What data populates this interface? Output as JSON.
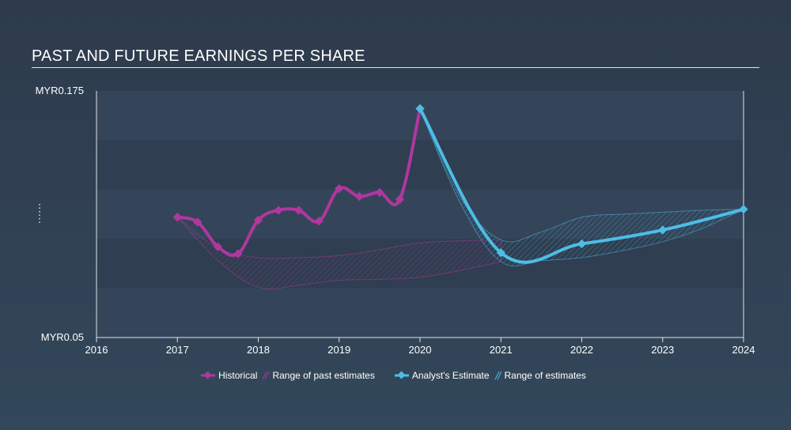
{
  "title": "PAST AND FUTURE EARNINGS PER SHARE",
  "colors": {
    "historical": "#b0379e",
    "estimate": "#4dbde6",
    "band_dark": "#2f3e50",
    "band_light": "#34455a",
    "axis": "#dfe3e8"
  },
  "legend": {
    "historical": "Historical",
    "past_range": "Range of past estimates",
    "estimate": "Analyst's Estimate",
    "future_range": "Range of estimates"
  },
  "chart_data": {
    "type": "line",
    "xlim": [
      2016.0,
      2024.0
    ],
    "ylim": [
      0.05,
      0.175
    ],
    "y_tick_labels": [
      "MYR0.175",
      "MYR0.05"
    ],
    "x_tick_labels": [
      "2016",
      "2017",
      "2018",
      "2019",
      "2020",
      "2021",
      "2022",
      "2023",
      "2024"
    ],
    "grid": "horizontal bands",
    "legend_position": "bottom-center",
    "series": [
      {
        "name": "Historical",
        "x": [
          2017.0,
          2017.25,
          2017.5,
          2017.75,
          2018.0,
          2018.25,
          2018.5,
          2018.75,
          2019.0,
          2019.25,
          2019.5,
          2019.75,
          2020.0
        ],
        "y": [
          0.111,
          0.1085,
          0.096,
          0.0925,
          0.1095,
          0.1145,
          0.1145,
          0.109,
          0.1255,
          0.1215,
          0.1235,
          0.12,
          0.166
        ]
      },
      {
        "name": "Analyst's Estimate",
        "x": [
          2020.0,
          2021.0,
          2022.0,
          2023.0,
          2024.0
        ],
        "y": [
          0.166,
          0.093,
          0.0975,
          0.1045,
          0.115
        ]
      }
    ],
    "ranges": [
      {
        "name": "Range of past estimates",
        "x": [
          2017.0,
          2017.5,
          2018.0,
          2018.5,
          2019.0,
          2019.5,
          2020.0,
          2020.5,
          2021.0
        ],
        "low": [
          0.111,
          0.089,
          0.0755,
          0.0765,
          0.079,
          0.0795,
          0.0805,
          0.084,
          0.0885
        ],
        "high": [
          0.111,
          0.0955,
          0.0905,
          0.0905,
          0.0915,
          0.0945,
          0.098,
          0.099,
          0.0995
        ]
      },
      {
        "name": "Range of estimates",
        "x": [
          2020.0,
          2020.5,
          2021.0,
          2021.5,
          2022.0,
          2022.5,
          2023.0,
          2023.5,
          2024.0
        ],
        "low": [
          0.166,
          0.118,
          0.0885,
          0.089,
          0.0905,
          0.094,
          0.0985,
          0.1055,
          0.115
        ],
        "high": [
          0.166,
          0.121,
          0.0995,
          0.1035,
          0.111,
          0.1125,
          0.1135,
          0.1145,
          0.115
        ]
      }
    ]
  }
}
